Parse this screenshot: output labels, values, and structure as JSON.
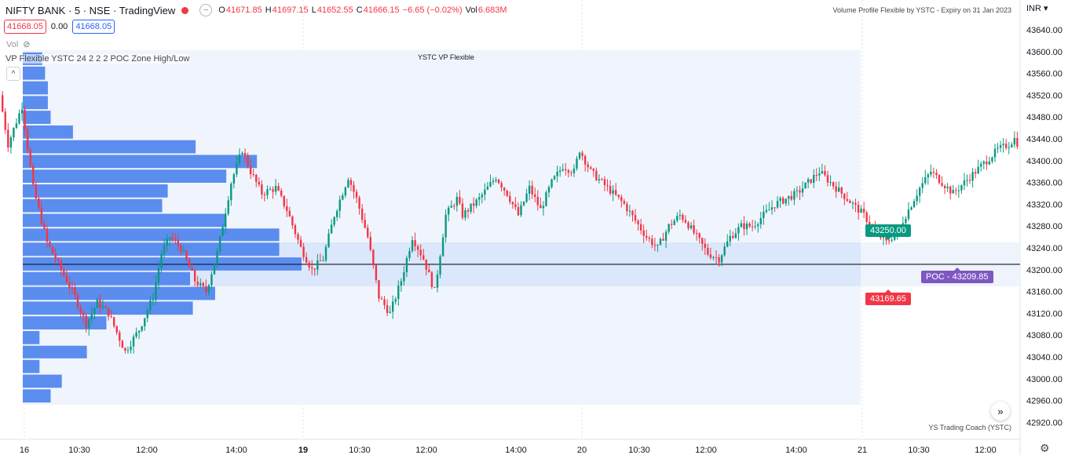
{
  "header": {
    "symbol": "NIFTY BANK · 5 · NSE · TradingView",
    "ohlc": {
      "o_label": "O",
      "o": "41671.85",
      "h_label": "H",
      "h": "41697.15",
      "l_label": "L",
      "l": "41652.55",
      "c_label": "C",
      "c": "41666.15",
      "change": "−6.65 (−0.02%)",
      "vol_label": "Vol",
      "vol": "6.683M"
    },
    "bid": "41668.05",
    "spread": "0.00",
    "ask": "41668.05",
    "volume_pane_label": "Vol",
    "indicator_label": "VP Flexible YSTC 24 2 2 2 POC Zone High/Low",
    "collapse_glyph": "^"
  },
  "notes": {
    "top_right": "Volume Profile Flexible by YSTC - Expiry on 31 Jan 2023",
    "vp_title": "YSTC VP Flexible",
    "bottom_right": "YS Trading Coach (YSTC)"
  },
  "axis": {
    "currency": "INR",
    "scroll_glyph": "»",
    "settings_glyph": "⚙"
  },
  "zone": {
    "high_label": "43250.00",
    "low_label": "43169.65",
    "poc_label": "POC - 43209.85"
  },
  "colors": {
    "up": "#089981",
    "down": "#f23645",
    "profile": "#5b8def",
    "zone": "#dbe7fb",
    "poc_line": "#131722"
  },
  "chart_data": {
    "type": "candlestick",
    "title": "NIFTY BANK · 5 · NSE",
    "y_range": [
      42890,
      43680
    ],
    "y_ticks": [
      "43640.00",
      "43600.00",
      "43560.00",
      "43520.00",
      "43480.00",
      "43440.00",
      "43400.00",
      "43360.00",
      "43320.00",
      "43280.00",
      "43240.00",
      "43200.00",
      "43160.00",
      "43120.00",
      "43080.00",
      "43040.00",
      "43000.00",
      "42960.00",
      "42920.00"
    ],
    "x_ticks": [
      {
        "label": "16",
        "bold": false
      },
      {
        "label": "10:30",
        "bold": false
      },
      {
        "label": "12:00",
        "bold": false
      },
      {
        "label": "14:00",
        "bold": false
      },
      {
        "label": "19",
        "bold": true
      },
      {
        "label": "10:30",
        "bold": false
      },
      {
        "label": "12:00",
        "bold": false
      },
      {
        "label": "14:00",
        "bold": false
      },
      {
        "label": "20",
        "bold": false
      },
      {
        "label": "10:30",
        "bold": false
      },
      {
        "label": "12:00",
        "bold": false
      },
      {
        "label": "14:00",
        "bold": false
      },
      {
        "label": "21",
        "bold": false
      },
      {
        "label": "10:30",
        "bold": false
      },
      {
        "label": "12:00",
        "bold": false
      }
    ],
    "x_tick_pos": [
      31,
      101,
      187,
      301,
      386,
      458,
      543,
      657,
      741,
      814,
      899,
      1014,
      1098,
      1170,
      1255
    ],
    "session_breaks": [
      31,
      386,
      741,
      1098
    ],
    "poc": 43209.85,
    "zone_high": 43250.0,
    "zone_low": 43169.65,
    "profile_range": [
      42955,
      43600
    ],
    "profile_bins": [
      {
        "low": 42955,
        "high": 42982,
        "rel": 0.1
      },
      {
        "low": 42982,
        "high": 43009,
        "rel": 0.14
      },
      {
        "low": 43009,
        "high": 43036,
        "rel": 0.06
      },
      {
        "low": 43036,
        "high": 43062,
        "rel": 0.23
      },
      {
        "low": 43062,
        "high": 43089,
        "rel": 0.06
      },
      {
        "low": 43089,
        "high": 43116,
        "rel": 0.3
      },
      {
        "low": 43116,
        "high": 43143,
        "rel": 0.61
      },
      {
        "low": 43143,
        "high": 43170,
        "rel": 0.69
      },
      {
        "low": 43170,
        "high": 43197,
        "rel": 0.6
      },
      {
        "low": 43197,
        "high": 43224,
        "rel": 1.0
      },
      {
        "low": 43224,
        "high": 43251,
        "rel": 0.92
      },
      {
        "low": 43251,
        "high": 43277,
        "rel": 0.92
      },
      {
        "low": 43277,
        "high": 43304,
        "rel": 0.73
      },
      {
        "low": 43304,
        "high": 43331,
        "rel": 0.5
      },
      {
        "low": 43331,
        "high": 43358,
        "rel": 0.52
      },
      {
        "low": 43358,
        "high": 43385,
        "rel": 0.73
      },
      {
        "low": 43385,
        "high": 43412,
        "rel": 0.84
      },
      {
        "low": 43412,
        "high": 43439,
        "rel": 0.62
      },
      {
        "low": 43439,
        "high": 43466,
        "rel": 0.18
      },
      {
        "low": 43466,
        "high": 43493,
        "rel": 0.1
      },
      {
        "low": 43493,
        "high": 43520,
        "rel": 0.09
      },
      {
        "low": 43520,
        "high": 43547,
        "rel": 0.09
      },
      {
        "low": 43547,
        "high": 43574,
        "rel": 0.08
      },
      {
        "low": 43574,
        "high": 43600,
        "rel": 0.07
      }
    ],
    "path": [
      [
        0,
        43520
      ],
      [
        3,
        43430
      ],
      [
        8,
        43500
      ],
      [
        12,
        43350
      ],
      [
        17,
        43250
      ],
      [
        22,
        43200
      ],
      [
        27,
        43150
      ],
      [
        31,
        43100
      ],
      [
        35,
        43140
      ],
      [
        39,
        43120
      ],
      [
        45,
        43050
      ],
      [
        50,
        43090
      ],
      [
        55,
        43150
      ],
      [
        58,
        43230
      ],
      [
        61,
        43260
      ],
      [
        65,
        43240
      ],
      [
        70,
        43180
      ],
      [
        74,
        43160
      ],
      [
        78,
        43230
      ],
      [
        83,
        43360
      ],
      [
        87,
        43420
      ],
      [
        90,
        43380
      ],
      [
        94,
        43340
      ],
      [
        99,
        43350
      ],
      [
        103,
        43310
      ],
      [
        108,
        43240
      ],
      [
        112,
        43200
      ],
      [
        116,
        43220
      ],
      [
        120,
        43300
      ],
      [
        125,
        43370
      ],
      [
        128,
        43330
      ],
      [
        132,
        43260
      ],
      [
        136,
        43150
      ],
      [
        140,
        43120
      ],
      [
        144,
        43180
      ],
      [
        148,
        43260
      ],
      [
        152,
        43220
      ],
      [
        156,
        43160
      ],
      [
        160,
        43300
      ],
      [
        164,
        43330
      ],
      [
        166,
        43300
      ],
      [
        172,
        43330
      ],
      [
        178,
        43370
      ],
      [
        182,
        43340
      ],
      [
        186,
        43300
      ],
      [
        190,
        43350
      ],
      [
        194,
        43310
      ],
      [
        198,
        43360
      ],
      [
        202,
        43390
      ],
      [
        206,
        43380
      ],
      [
        208,
        43420
      ],
      [
        212,
        43380
      ],
      [
        216,
        43360
      ],
      [
        220,
        43340
      ],
      [
        224,
        43320
      ],
      [
        228,
        43290
      ],
      [
        232,
        43260
      ],
      [
        236,
        43240
      ],
      [
        240,
        43280
      ],
      [
        244,
        43300
      ],
      [
        246,
        43290
      ],
      [
        250,
        43260
      ],
      [
        254,
        43230
      ],
      [
        258,
        43220
      ],
      [
        262,
        43260
      ],
      [
        266,
        43280
      ],
      [
        270,
        43280
      ],
      [
        274,
        43300
      ],
      [
        278,
        43320
      ],
      [
        282,
        43330
      ],
      [
        286,
        43340
      ],
      [
        290,
        43360
      ],
      [
        294,
        43380
      ],
      [
        298,
        43360
      ],
      [
        302,
        43340
      ],
      [
        306,
        43320
      ],
      [
        310,
        43300
      ],
      [
        314,
        43270
      ],
      [
        318,
        43250
      ],
      [
        322,
        43270
      ],
      [
        326,
        43310
      ],
      [
        330,
        43350
      ],
      [
        334,
        43380
      ],
      [
        338,
        43360
      ],
      [
        342,
        43340
      ],
      [
        346,
        43360
      ],
      [
        350,
        43380
      ],
      [
        354,
        43400
      ],
      [
        358,
        43420
      ],
      [
        362,
        43430
      ],
      [
        364,
        43440
      ],
      [
        368,
        43410
      ],
      [
        372,
        43380
      ],
      [
        376,
        43350
      ]
    ]
  }
}
